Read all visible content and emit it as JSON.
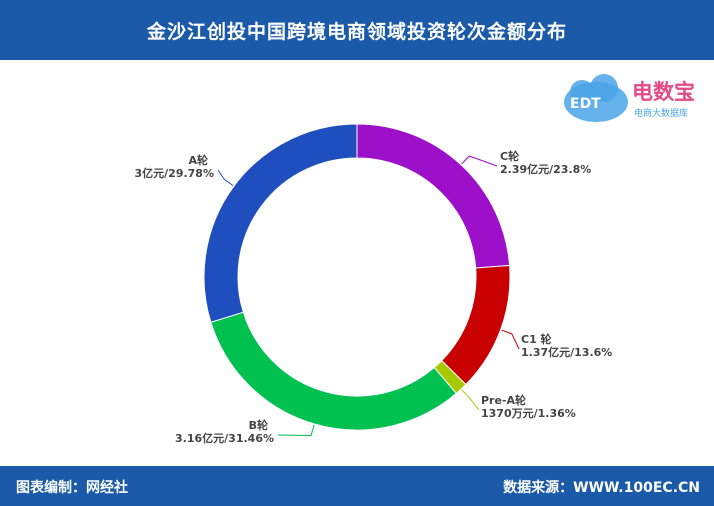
{
  "header": {
    "title": "金沙江创投中国跨境电商领域投资轮次金额分布"
  },
  "logo": {
    "brand": "电数宝",
    "sub": "电商大数据库",
    "mark": "EDT"
  },
  "footer": {
    "left": "图表编制：网经社",
    "right": "数据来源：WWW.100EC.CN"
  },
  "colors": {
    "header_bg": "#1a5aa8",
    "a_round": "#1f4fbf",
    "c_round": "#9b10c8",
    "c1_round": "#c80000",
    "prea_round": "#a8c800",
    "b_round": "#00c050"
  },
  "chart_data": {
    "type": "pie",
    "donut": true,
    "title": "金沙江创投中国跨境电商领域投资轮次金额分布",
    "slices": [
      {
        "name": "C轮",
        "value": 2.39,
        "percent": 23.8,
        "label_name": "C轮",
        "label_value": "2.39亿元/23.8%",
        "color": "#9b10c8"
      },
      {
        "name": "C1 轮",
        "value": 1.37,
        "percent": 13.6,
        "label_name": "C1 轮",
        "label_value": "1.37亿元/13.6%",
        "color": "#c80000"
      },
      {
        "name": "Pre-A轮",
        "value": 0.137,
        "percent": 1.36,
        "label_name": "Pre-A轮",
        "label_value": "1370万元/1.36%",
        "color": "#a8c800"
      },
      {
        "name": "B轮",
        "value": 3.16,
        "percent": 31.46,
        "label_name": "B轮",
        "label_value": "3.16亿元/31.46%",
        "color": "#00c050"
      },
      {
        "name": "A轮",
        "value": 3,
        "percent": 29.78,
        "label_name": "A轮",
        "label_value": "3亿元/29.78%",
        "color": "#1f4fbf"
      }
    ]
  }
}
